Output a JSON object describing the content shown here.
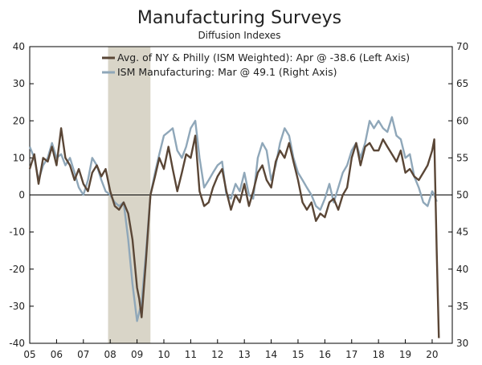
{
  "chart_data": {
    "type": "line",
    "title": "Manufacturing Surveys",
    "subtitle": "Diffusion Indexes",
    "x_range": [
      2005.0,
      2020.75
    ],
    "x_ticks": [
      {
        "pos": 2005,
        "label": "05"
      },
      {
        "pos": 2006,
        "label": "06"
      },
      {
        "pos": 2007,
        "label": "07"
      },
      {
        "pos": 2008,
        "label": "08"
      },
      {
        "pos": 2009,
        "label": "09"
      },
      {
        "pos": 2010,
        "label": "10"
      },
      {
        "pos": 2011,
        "label": "11"
      },
      {
        "pos": 2012,
        "label": "12"
      },
      {
        "pos": 2013,
        "label": "13"
      },
      {
        "pos": 2014,
        "label": "14"
      },
      {
        "pos": 2015,
        "label": "15"
      },
      {
        "pos": 2016,
        "label": "16"
      },
      {
        "pos": 2017,
        "label": "17"
      },
      {
        "pos": 2018,
        "label": "18"
      },
      {
        "pos": 2019,
        "label": "19"
      },
      {
        "pos": 2020,
        "label": "20"
      }
    ],
    "left_axis": {
      "range": [
        -40,
        40
      ],
      "ticks": [
        "-40",
        "-30",
        "-20",
        "-10",
        "0",
        "10",
        "20",
        "30",
        "40"
      ]
    },
    "right_axis": {
      "range": [
        30,
        70
      ],
      "ticks": [
        "30",
        "35",
        "40",
        "45",
        "50",
        "55",
        "60",
        "65",
        "70"
      ]
    },
    "shaded_period": {
      "start": 2007.92,
      "end": 2009.5,
      "color": "#d9d5c8"
    },
    "zero_line": 0,
    "legend_position": "top-right",
    "series": [
      {
        "name": "Avg. of NY & Philly (ISM Weighted): Apr @ -38.6  (Left Axis)",
        "axis": "left",
        "color": "#5a4636",
        "points": [
          [
            2005.0,
            7
          ],
          [
            2005.17,
            11
          ],
          [
            2005.33,
            3
          ],
          [
            2005.5,
            10
          ],
          [
            2005.67,
            9
          ],
          [
            2005.83,
            13
          ],
          [
            2006.0,
            8
          ],
          [
            2006.17,
            18
          ],
          [
            2006.33,
            10
          ],
          [
            2006.5,
            8
          ],
          [
            2006.67,
            4
          ],
          [
            2006.83,
            7
          ],
          [
            2007.0,
            3
          ],
          [
            2007.17,
            1
          ],
          [
            2007.33,
            6
          ],
          [
            2007.5,
            8
          ],
          [
            2007.67,
            5
          ],
          [
            2007.83,
            7
          ],
          [
            2008.0,
            1
          ],
          [
            2008.17,
            -3
          ],
          [
            2008.33,
            -4
          ],
          [
            2008.5,
            -2
          ],
          [
            2008.67,
            -5
          ],
          [
            2008.83,
            -12
          ],
          [
            2009.0,
            -25
          ],
          [
            2009.08,
            -28
          ],
          [
            2009.17,
            -33
          ],
          [
            2009.33,
            -18
          ],
          [
            2009.5,
            0
          ],
          [
            2009.67,
            5
          ],
          [
            2009.83,
            10
          ],
          [
            2010.0,
            7
          ],
          [
            2010.17,
            13
          ],
          [
            2010.33,
            7
          ],
          [
            2010.5,
            1
          ],
          [
            2010.67,
            6
          ],
          [
            2010.83,
            11
          ],
          [
            2011.0,
            10
          ],
          [
            2011.17,
            16
          ],
          [
            2011.33,
            1
          ],
          [
            2011.5,
            -3
          ],
          [
            2011.67,
            -2
          ],
          [
            2011.83,
            2
          ],
          [
            2012.0,
            5
          ],
          [
            2012.17,
            7
          ],
          [
            2012.33,
            1
          ],
          [
            2012.5,
            -4
          ],
          [
            2012.67,
            0
          ],
          [
            2012.83,
            -2
          ],
          [
            2013.0,
            3
          ],
          [
            2013.17,
            -3
          ],
          [
            2013.33,
            1
          ],
          [
            2013.5,
            6
          ],
          [
            2013.67,
            8
          ],
          [
            2013.83,
            4
          ],
          [
            2014.0,
            2
          ],
          [
            2014.17,
            9
          ],
          [
            2014.33,
            12
          ],
          [
            2014.5,
            10
          ],
          [
            2014.67,
            14
          ],
          [
            2014.83,
            9
          ],
          [
            2015.0,
            4
          ],
          [
            2015.17,
            -2
          ],
          [
            2015.33,
            -4
          ],
          [
            2015.5,
            -2
          ],
          [
            2015.67,
            -7
          ],
          [
            2015.83,
            -5
          ],
          [
            2016.0,
            -6
          ],
          [
            2016.17,
            -2
          ],
          [
            2016.33,
            -1
          ],
          [
            2016.5,
            -4
          ],
          [
            2016.67,
            0
          ],
          [
            2016.83,
            2
          ],
          [
            2017.0,
            10
          ],
          [
            2017.17,
            14
          ],
          [
            2017.33,
            8
          ],
          [
            2017.5,
            13
          ],
          [
            2017.67,
            14
          ],
          [
            2017.83,
            12
          ],
          [
            2018.0,
            12
          ],
          [
            2018.17,
            15
          ],
          [
            2018.33,
            13
          ],
          [
            2018.5,
            11
          ],
          [
            2018.67,
            9
          ],
          [
            2018.83,
            12
          ],
          [
            2019.0,
            6
          ],
          [
            2019.17,
            7
          ],
          [
            2019.33,
            5
          ],
          [
            2019.5,
            4
          ],
          [
            2019.67,
            6
          ],
          [
            2019.83,
            8
          ],
          [
            2020.0,
            12
          ],
          [
            2020.08,
            15
          ],
          [
            2020.17,
            -15
          ],
          [
            2020.25,
            -38.6
          ]
        ]
      },
      {
        "name": "ISM Manufacturing: Mar @ 49.1 (Right Axis)",
        "axis": "right",
        "color": "#8fa7b9",
        "points": [
          [
            2005.0,
            56.5
          ],
          [
            2005.17,
            55
          ],
          [
            2005.33,
            52
          ],
          [
            2005.5,
            54
          ],
          [
            2005.67,
            55
          ],
          [
            2005.83,
            57
          ],
          [
            2006.0,
            55
          ],
          [
            2006.17,
            55.5
          ],
          [
            2006.33,
            54
          ],
          [
            2006.5,
            55
          ],
          [
            2006.67,
            53
          ],
          [
            2006.83,
            51
          ],
          [
            2007.0,
            50
          ],
          [
            2007.17,
            52
          ],
          [
            2007.33,
            55
          ],
          [
            2007.5,
            54
          ],
          [
            2007.67,
            52
          ],
          [
            2007.83,
            50.5
          ],
          [
            2008.0,
            50
          ],
          [
            2008.17,
            49
          ],
          [
            2008.33,
            48.5
          ],
          [
            2008.5,
            49
          ],
          [
            2008.67,
            44
          ],
          [
            2008.83,
            38
          ],
          [
            2009.0,
            33
          ],
          [
            2009.17,
            35.5
          ],
          [
            2009.33,
            42
          ],
          [
            2009.5,
            50
          ],
          [
            2009.67,
            53
          ],
          [
            2009.83,
            55.5
          ],
          [
            2010.0,
            58
          ],
          [
            2010.17,
            58.5
          ],
          [
            2010.33,
            59
          ],
          [
            2010.5,
            56
          ],
          [
            2010.67,
            55
          ],
          [
            2010.83,
            56.5
          ],
          [
            2011.0,
            59
          ],
          [
            2011.17,
            60
          ],
          [
            2011.33,
            55
          ],
          [
            2011.5,
            51
          ],
          [
            2011.67,
            52
          ],
          [
            2011.83,
            53
          ],
          [
            2012.0,
            54
          ],
          [
            2012.17,
            54.5
          ],
          [
            2012.33,
            50
          ],
          [
            2012.5,
            49.5
          ],
          [
            2012.67,
            51.5
          ],
          [
            2012.83,
            50.5
          ],
          [
            2013.0,
            53
          ],
          [
            2013.17,
            50
          ],
          [
            2013.33,
            49.5
          ],
          [
            2013.5,
            55
          ],
          [
            2013.67,
            57
          ],
          [
            2013.83,
            56
          ],
          [
            2014.0,
            52
          ],
          [
            2014.17,
            54
          ],
          [
            2014.33,
            57
          ],
          [
            2014.5,
            59
          ],
          [
            2014.67,
            58
          ],
          [
            2014.83,
            55
          ],
          [
            2015.0,
            53
          ],
          [
            2015.17,
            52
          ],
          [
            2015.33,
            51
          ],
          [
            2015.5,
            50
          ],
          [
            2015.67,
            48.5
          ],
          [
            2015.83,
            48
          ],
          [
            2016.0,
            49.5
          ],
          [
            2016.17,
            51.5
          ],
          [
            2016.33,
            49
          ],
          [
            2016.5,
            51
          ],
          [
            2016.67,
            53
          ],
          [
            2016.83,
            54
          ],
          [
            2017.0,
            56
          ],
          [
            2017.17,
            57
          ],
          [
            2017.33,
            55
          ],
          [
            2017.5,
            57
          ],
          [
            2017.67,
            60
          ],
          [
            2017.83,
            59
          ],
          [
            2018.0,
            60
          ],
          [
            2018.17,
            59
          ],
          [
            2018.33,
            58.5
          ],
          [
            2018.5,
            60.5
          ],
          [
            2018.67,
            58
          ],
          [
            2018.83,
            57.5
          ],
          [
            2019.0,
            55
          ],
          [
            2019.17,
            55.5
          ],
          [
            2019.33,
            52.5
          ],
          [
            2019.5,
            51
          ],
          [
            2019.67,
            49
          ],
          [
            2019.83,
            48.5
          ],
          [
            2020.0,
            50.5
          ],
          [
            2020.08,
            50
          ],
          [
            2020.17,
            49.1
          ]
        ]
      }
    ]
  }
}
